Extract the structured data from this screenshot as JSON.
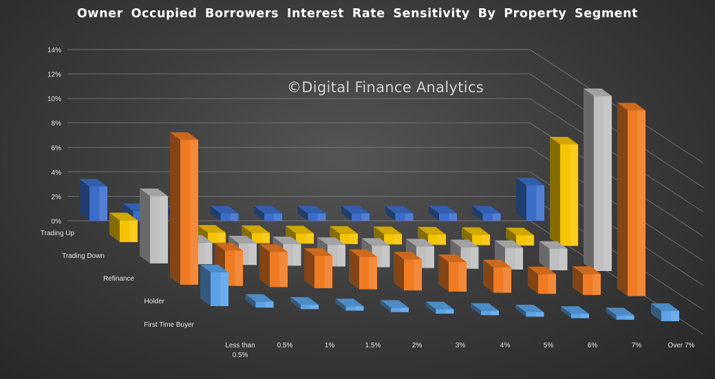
{
  "chart_data": {
    "type": "bar",
    "title": "Owner Occupied Borrowers Interest Rate Sensitivity By Property Segment",
    "watermark": "©Digital Finance Analytics",
    "x_tick_labels": [
      "0%",
      "2%",
      "4%",
      "6%",
      "8%",
      "10%",
      "12%",
      "14%"
    ],
    "ylim": [
      0,
      14
    ],
    "categories": [
      [
        "Less than",
        "0.5%"
      ],
      [
        "0.5%"
      ],
      [
        "1%"
      ],
      [
        "1.5%"
      ],
      [
        "2%"
      ],
      [
        "3%"
      ],
      [
        "4%"
      ],
      [
        "5%"
      ],
      [
        "6%"
      ],
      [
        "7%"
      ],
      [
        "Over 7%"
      ]
    ],
    "series": [
      {
        "name": "Trading Up",
        "color": "#3b6ecb",
        "values": [
          2.8,
          0.8,
          0.6,
          0.6,
          0.6,
          0.6,
          0.6,
          0.6,
          0.6,
          0.6,
          2.9
        ]
      },
      {
        "name": "Trading Down",
        "color": "#f5c400",
        "values": [
          1.7,
          0,
          0.8,
          0.8,
          0.8,
          0.8,
          0.8,
          0.8,
          0.8,
          0.8,
          7.9
        ]
      },
      {
        "name": "Refinance",
        "color": "#bfbfbf",
        "values": [
          5.0,
          1.6,
          1.6,
          1.6,
          1.6,
          1.6,
          1.6,
          1.6,
          1.6,
          1.6,
          13.0
        ]
      },
      {
        "name": "Holder",
        "color": "#f07b22",
        "values": [
          10.3,
          2.5,
          2.5,
          2.3,
          2.3,
          2.2,
          2.1,
          1.8,
          1.4,
          1.5,
          13.2
        ]
      },
      {
        "name": "First Time Buyer",
        "color": "#5ba3e6",
        "values": [
          2.3,
          0.4,
          0.3,
          0.3,
          0.3,
          0.3,
          0.3,
          0.3,
          0.3,
          0.3,
          0.7
        ]
      }
    ],
    "grid": true,
    "legend": "none"
  }
}
